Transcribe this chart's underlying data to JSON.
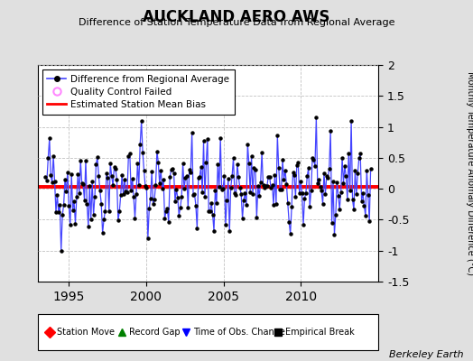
{
  "title": "AUCKLAND AERO AWS",
  "subtitle": "Difference of Station Temperature Data from Regional Average",
  "ylabel": "Monthly Temperature Anomaly Difference (°C)",
  "xlabel_years": [
    1995,
    2000,
    2005,
    2010
  ],
  "ylim": [
    -1.5,
    2.0
  ],
  "yticks": [
    -1.5,
    -1.0,
    -0.5,
    0.0,
    0.5,
    1.0,
    1.5,
    2.0
  ],
  "ytick_labels": [
    "-1.5",
    "-1",
    "-0.5",
    "0",
    "0.5",
    "1",
    "1.5",
    "2"
  ],
  "bias_value": 0.03,
  "xlim_start": 1993.0,
  "xlim_end": 2015.0,
  "line_color": "#4444FF",
  "bias_color": "#FF0000",
  "dot_color": "#000000",
  "background_color": "#E0E0E0",
  "plot_bg_color": "#FFFFFF",
  "berkeley_earth_text": "Berkeley Earth",
  "seed": 42,
  "n_months": 252,
  "start_month_year": 1993.5
}
